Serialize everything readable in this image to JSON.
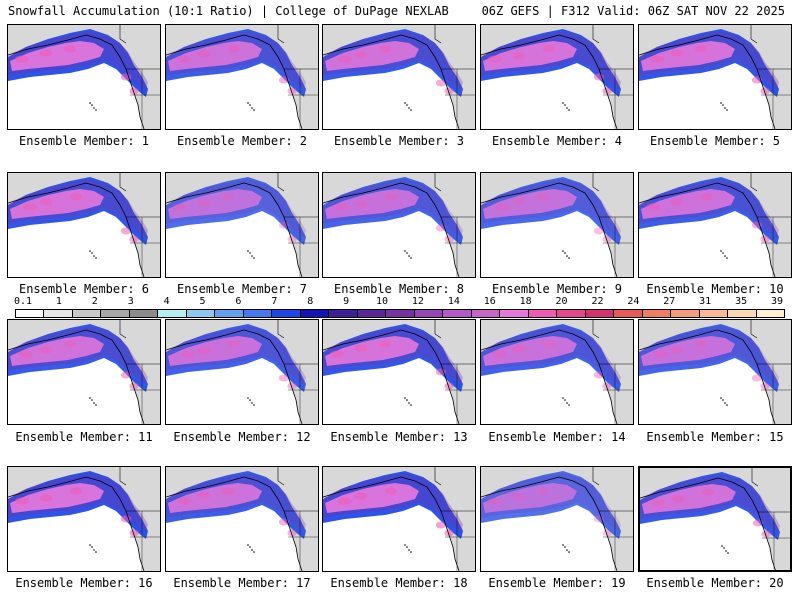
{
  "header": {
    "title_left": "Snowfall Accumulation (10:1 Ratio) | College of DuPage NEXLAB",
    "title_right": "06Z GEFS | F312 Valid: 06Z SAT NOV 22 2025"
  },
  "members": [
    {
      "label": "Ensemble Member: 1",
      "intensity": 0.95
    },
    {
      "label": "Ensemble Member: 2",
      "intensity": 0.8
    },
    {
      "label": "Ensemble Member: 3",
      "intensity": 0.85
    },
    {
      "label": "Ensemble Member: 4",
      "intensity": 0.9
    },
    {
      "label": "Ensemble Member: 5",
      "intensity": 0.9
    },
    {
      "label": "Ensemble Member: 6",
      "intensity": 0.9
    },
    {
      "label": "Ensemble Member: 7",
      "intensity": 0.6
    },
    {
      "label": "Ensemble Member: 8",
      "intensity": 0.7
    },
    {
      "label": "Ensemble Member: 9",
      "intensity": 0.65
    },
    {
      "label": "Ensemble Member: 10",
      "intensity": 0.8
    },
    {
      "label": "Ensemble Member: 11",
      "intensity": 0.85
    },
    {
      "label": "Ensemble Member: 12",
      "intensity": 0.75
    },
    {
      "label": "Ensemble Member: 13",
      "intensity": 0.9
    },
    {
      "label": "Ensemble Member: 14",
      "intensity": 0.75
    },
    {
      "label": "Ensemble Member: 15",
      "intensity": 0.7
    },
    {
      "label": "Ensemble Member: 16",
      "intensity": 0.95
    },
    {
      "label": "Ensemble Member: 17",
      "intensity": 0.8
    },
    {
      "label": "Ensemble Member: 18",
      "intensity": 0.95
    },
    {
      "label": "Ensemble Member: 19",
      "intensity": 0.55
    },
    {
      "label": "Ensemble Member: 20",
      "intensity": 0.85
    }
  ],
  "colorbar": {
    "ticks": [
      "0.1",
      "1",
      "2",
      "3",
      "4",
      "5",
      "6",
      "7",
      "8",
      "9",
      "10",
      "12",
      "14",
      "16",
      "18",
      "20",
      "22",
      "24",
      "27",
      "31",
      "35",
      "39"
    ],
    "colors": [
      "#ffffff",
      "#e6e6e6",
      "#c8c8c8",
      "#a8a8a8",
      "#8c8c8c",
      "#b4f0f0",
      "#8cc8f0",
      "#64a0f0",
      "#4678f0",
      "#1e46e6",
      "#1414b4",
      "#3c1e96",
      "#5a2896",
      "#7832a0",
      "#9646b4",
      "#b45ac8",
      "#c864c8",
      "#e678dc",
      "#f05ab4",
      "#e6468c",
      "#d2326e",
      "#e65a5a",
      "#f07c64",
      "#f59b7d",
      "#fab996",
      "#fcd7b4",
      "#fff0d2"
    ]
  }
}
